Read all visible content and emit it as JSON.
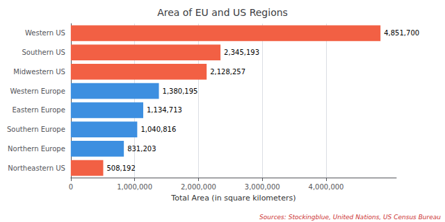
{
  "chart_data": {
    "type": "bar",
    "orientation": "horizontal",
    "title": "Area of EU and US Regions",
    "xlabel": "Total Area (in square kilometers)",
    "annotation": "Sources: Stockingblue, United Nations, US Census Bureau",
    "categories": [
      "Western US",
      "Southern US",
      "Midwestern US",
      "Western Europe",
      "Eastern Europe",
      "Southern Europe",
      "Northern Europe",
      "Northeastern US"
    ],
    "values": [
      4851700,
      2345193,
      2128257,
      1380195,
      1134713,
      1040816,
      831203,
      508192
    ],
    "value_labels": [
      "4,851,700",
      "2,345,193",
      "2,128,257",
      "1,380,195",
      "1,134,713",
      "1,040,816",
      "831,203",
      "508,192"
    ],
    "colors": [
      "#f26044",
      "#f26044",
      "#f26044",
      "#3d8fe0",
      "#3d8fe0",
      "#3d8fe0",
      "#3d8fe0",
      "#f26044"
    ],
    "xlim": [
      0,
      5100000
    ],
    "xticks": [
      0,
      {
        "value": 1000000,
        "label": "1,000,000"
      },
      {
        "value": 2000000,
        "label": "2,000,000"
      },
      {
        "value": 3000000,
        "label": "3,000,000"
      },
      {
        "value": 4000000,
        "label": "4,000,000"
      }
    ],
    "grid": true,
    "data_labels": true
  }
}
